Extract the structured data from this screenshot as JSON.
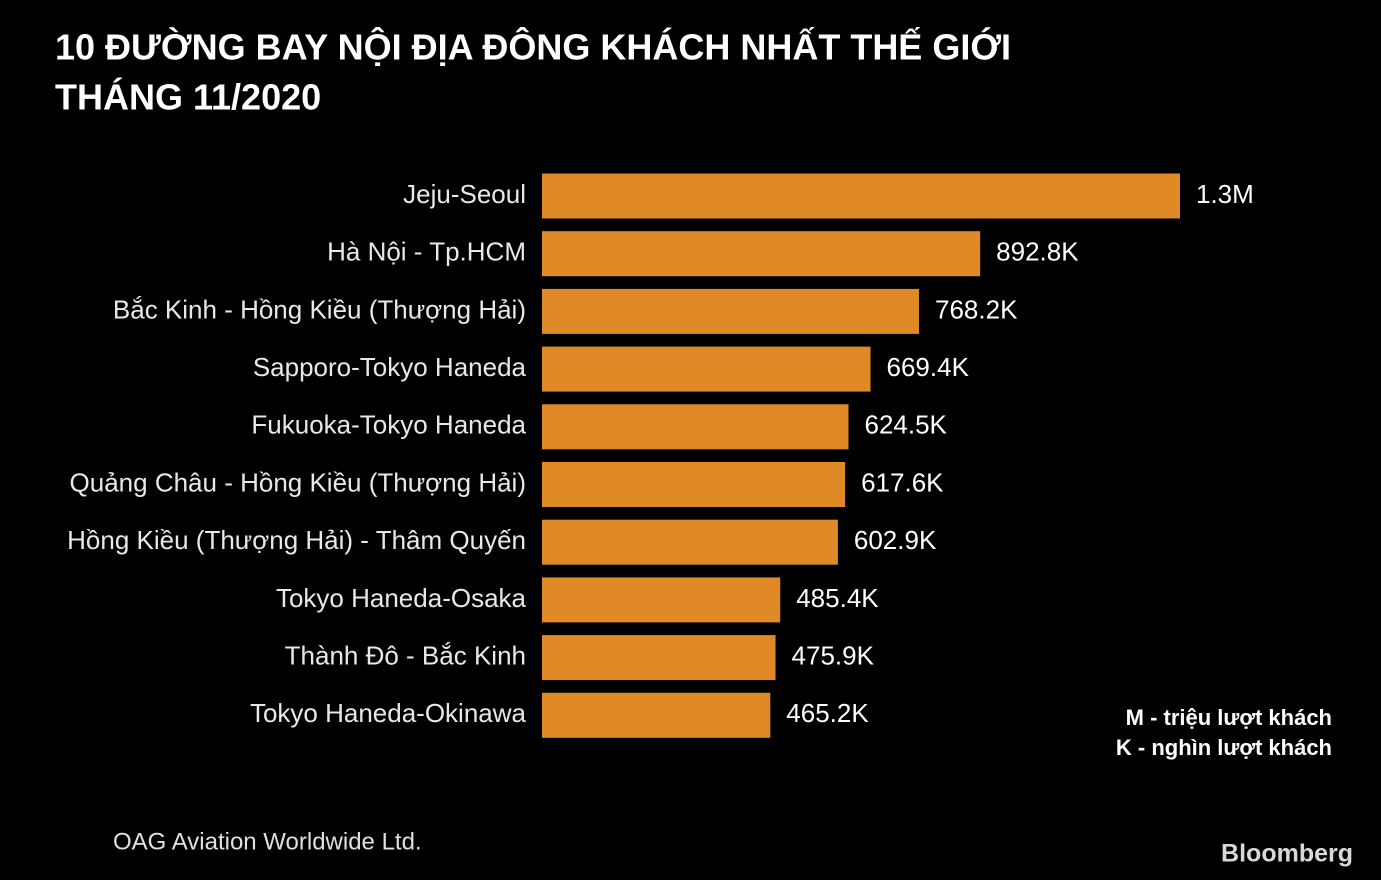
{
  "chart_data": {
    "type": "bar",
    "orientation": "horizontal",
    "title": [
      "10 ĐƯỜNG BAY NỘI ĐỊA ĐÔNG KHÁCH NHẤT THẾ GIỚI",
      "THÁNG 11/2020"
    ],
    "categories": [
      "Jeju-Seoul",
      "Hà Nội - Tp.HCM",
      "Bắc Kinh - Hồng Kiều (Thượng Hải)",
      "Sapporo-Tokyo Haneda",
      "Fukuoka-Tokyo Haneda",
      "Quảng Châu - Hồng Kiều (Thượng Hải)",
      "Hồng Kiều (Thượng Hải) - Thâm Quyến",
      "Tokyo Haneda-Osaka",
      "Thành Đô - Bắc Kinh",
      "Tokyo Haneda-Okinawa"
    ],
    "values": [
      1300000,
      892800,
      768200,
      669400,
      624500,
      617600,
      602900,
      485400,
      475900,
      465200
    ],
    "value_labels": [
      "1.3M",
      "892.8K",
      "768.2K",
      "669.4K",
      "624.5K",
      "617.6K",
      "602.9K",
      "485.4K",
      "475.9K",
      "465.2K"
    ],
    "color": "#df8a26",
    "notes": [
      "M - triệu lượt khách",
      "K - nghìn lượt khách"
    ],
    "source": "OAG Aviation Worldwide Ltd.",
    "brand": "Bloomberg"
  }
}
